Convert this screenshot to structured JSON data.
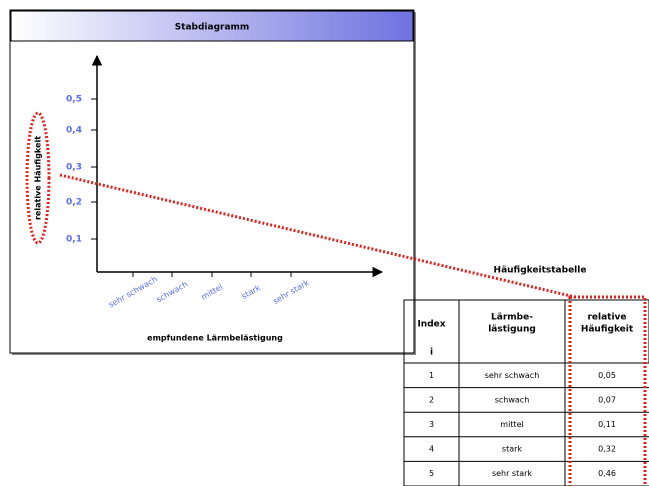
{
  "panel": {
    "title": "Stabdiagramm",
    "y_label": "relative Häufigkeit",
    "y_ticks": [
      "0,1",
      "0,2",
      "0,3",
      "0,4",
      "0,5"
    ],
    "x_categories": [
      "sehr schwach",
      "schwach",
      "mittel",
      "stark",
      "sehr stark"
    ],
    "x_label": "empfundene Lärmbelästigung"
  },
  "table": {
    "title": "Häufigkeitstabelle",
    "header": [
      [
        "Index",
        "i"
      ],
      [
        "Lärmbe-",
        "lästigung"
      ],
      [
        "relative",
        "Häufigkeit"
      ]
    ],
    "rows": [
      [
        "1",
        "sehr schwach",
        "0,05"
      ],
      [
        "2",
        "schwach",
        "0,07"
      ],
      [
        "3",
        "mittel",
        "0,11"
      ],
      [
        "4",
        "stark",
        "0,32"
      ],
      [
        "5",
        "sehr stark",
        "0,46"
      ]
    ]
  }
}
